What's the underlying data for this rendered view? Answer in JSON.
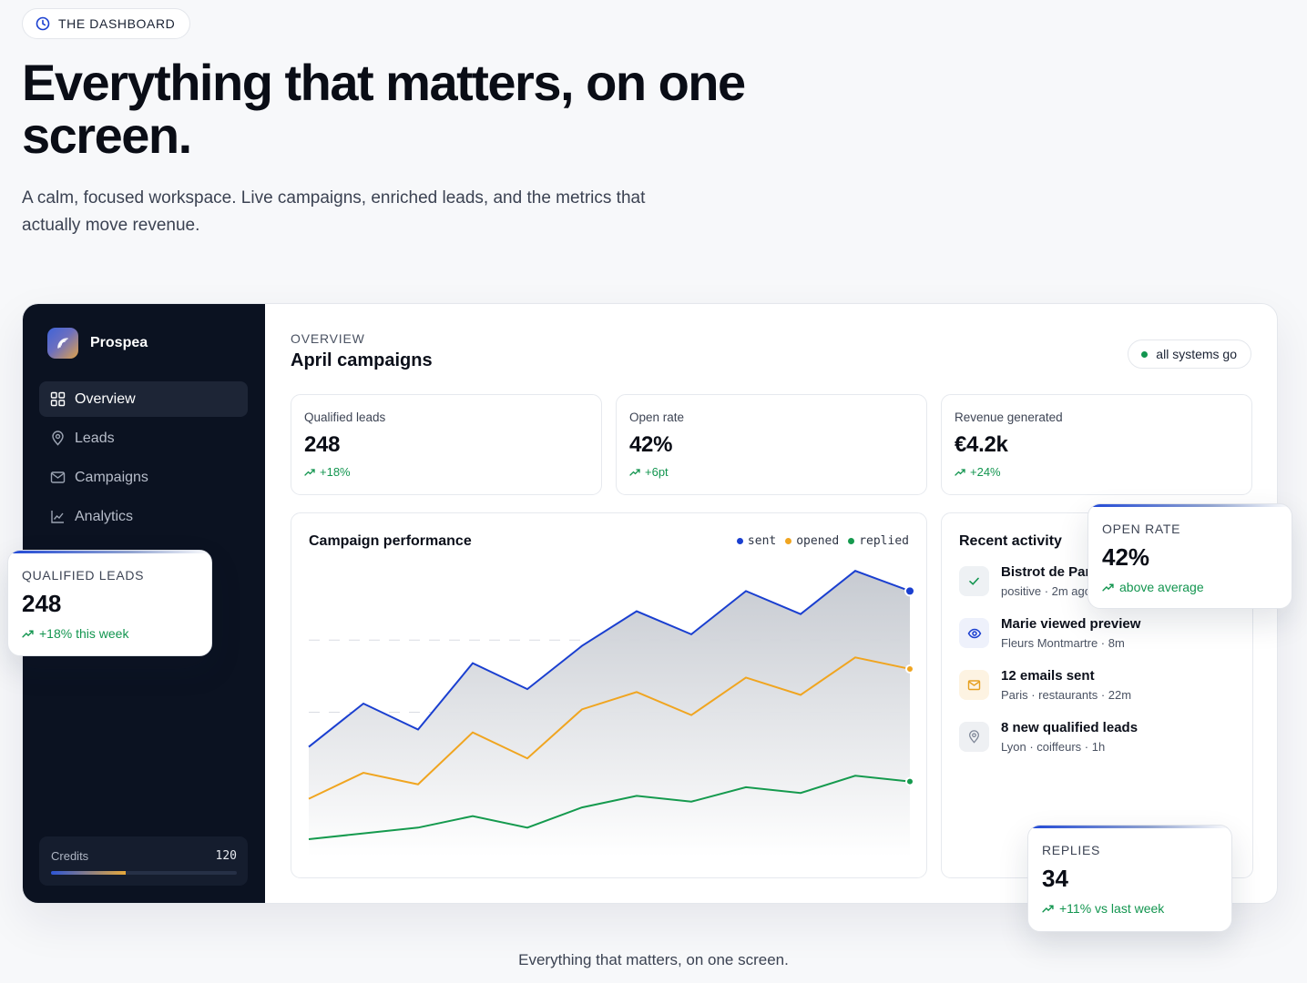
{
  "badge": {
    "label": "THE DASHBOARD",
    "icon": "clock-icon"
  },
  "hero": {
    "title": "Everything that matters, on one screen.",
    "subtitle": "A calm, focused workspace. Live campaigns, enriched leads, and the metrics that actually move revenue."
  },
  "app": {
    "brand": "Prospea",
    "nav": [
      {
        "label": "Overview",
        "icon": "grid-icon",
        "active": true
      },
      {
        "label": "Leads",
        "icon": "pin-icon",
        "active": false
      },
      {
        "label": "Campaigns",
        "icon": "mail-icon",
        "active": false
      },
      {
        "label": "Analytics",
        "icon": "chart-icon",
        "active": false
      }
    ],
    "credits": {
      "label": "Credits",
      "value": "120",
      "fill_fraction": 0.4
    }
  },
  "overview": {
    "eyebrow": "OVERVIEW",
    "title": "April campaigns",
    "status": "all systems go",
    "status_color": "#12954f"
  },
  "kpis": [
    {
      "label": "Qualified leads",
      "value": "248",
      "delta": "+18%"
    },
    {
      "label": "Open rate",
      "value": "42%",
      "delta": "+6pt"
    },
    {
      "label": "Revenue generated",
      "value": "€4.2k",
      "delta": "+24%"
    }
  ],
  "chart_data": {
    "type": "line",
    "title": "Campaign performance",
    "x": [
      1,
      2,
      3,
      4,
      5,
      6,
      7,
      8,
      9,
      10,
      11,
      12
    ],
    "ylim": [
      0,
      100
    ],
    "grid": true,
    "legend": "top-right",
    "series": [
      {
        "name": "sent",
        "color": "#1a3fd0",
        "values": [
          38,
          53,
          44,
          67,
          58,
          73,
          85,
          77,
          92,
          84,
          99,
          92
        ]
      },
      {
        "name": "opened",
        "color": "#f0a520",
        "values": [
          20,
          29,
          25,
          43,
          34,
          51,
          57,
          49,
          62,
          56,
          69,
          65
        ]
      },
      {
        "name": "replied",
        "color": "#159a4e",
        "values": [
          6,
          8,
          10,
          14,
          10,
          17,
          21,
          19,
          24,
          22,
          28,
          26
        ]
      }
    ]
  },
  "activity": {
    "title": "Recent activity",
    "items": [
      {
        "title": "Bistrot de Paris replied",
        "sub": "positive · 2m ago",
        "icon": "check-icon"
      },
      {
        "title": "Marie viewed preview",
        "sub": "Fleurs Montmartre · 8m",
        "icon": "eye-icon"
      },
      {
        "title": "12 emails sent",
        "sub": "Paris · restaurants · 22m",
        "icon": "mail-icon"
      },
      {
        "title": "8 new qualified leads",
        "sub": "Lyon · coiffeurs · 1h",
        "icon": "pin-icon"
      }
    ]
  },
  "floats": {
    "qualified": {
      "label": "QUALIFIED LEADS",
      "value": "248",
      "delta": "+18% this week"
    },
    "open_rate": {
      "label": "OPEN RATE",
      "value": "42%",
      "delta": "above average"
    },
    "replies": {
      "label": "REPLIES",
      "value": "34",
      "delta": "+11% vs last week"
    }
  },
  "caption": "Everything that matters, on one screen."
}
